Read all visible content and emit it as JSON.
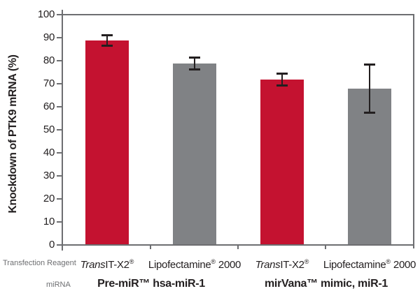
{
  "chart_data": {
    "type": "bar",
    "title": "",
    "ylabel": "Knockdown of PTK9 mRNA  (%)",
    "xlabel": "",
    "categories": [
      "TransIT-X2®",
      "Lipofectamine® 2000",
      "TransIT-X2®",
      "Lipofectamine® 2000"
    ],
    "group_labels": [
      "Pre-miR™ hsa-miR-1",
      "mirVana™ mimic, miR-1"
    ],
    "values": [
      89,
      79,
      72,
      68
    ],
    "error_bars": [
      2.2,
      2.5,
      2.5,
      10.5
    ],
    "bar_colors": [
      "#C41230",
      "#808285",
      "#C41230",
      "#808285"
    ],
    "ylim": [
      0,
      100
    ],
    "yticks": [
      0,
      10,
      20,
      30,
      40,
      50,
      60,
      70,
      80,
      90,
      100
    ],
    "grid": false,
    "legend": "none",
    "axis_color": "#6D6E71",
    "error_color": "#231F20"
  },
  "yaxis": {
    "title": "Knockdown of PTK9 mRNA  (%)"
  },
  "xaxis": {
    "row_label_reagent": "Transfection Reagent",
    "row_label_mirna": "miRNA",
    "labels": [
      {
        "italic": "Trans",
        "text": "IT-X2",
        "sup": "®",
        "tail": ""
      },
      {
        "italic": "",
        "text": "Lipofectamine",
        "sup": "®",
        "tail": " 2000"
      },
      {
        "italic": "Trans",
        "text": "IT-X2",
        "sup": "®",
        "tail": ""
      },
      {
        "italic": "",
        "text": "Lipofectamine",
        "sup": "®",
        "tail": " 2000"
      }
    ],
    "groups": [
      {
        "label": "Pre-miR™ hsa-miR-1"
      },
      {
        "label": "mirVana™ mimic, miR-1"
      }
    ]
  }
}
